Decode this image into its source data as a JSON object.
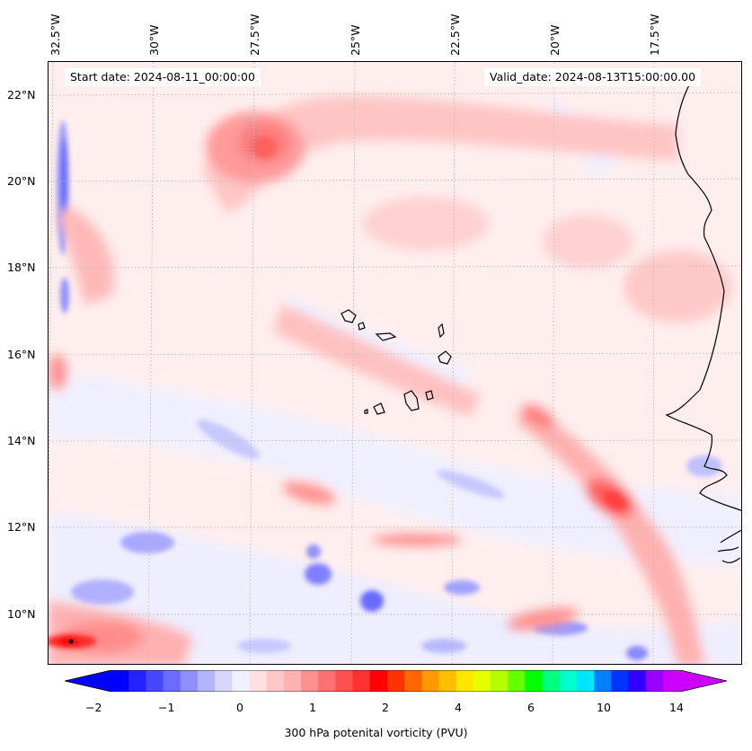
{
  "map": {
    "start_date": "Start date: 2024-08-11_00:00:00",
    "valid_date": "Valid_date: 2024-08-13T15:00:00.00",
    "lon_labels": [
      "32.5°W",
      "30°W",
      "27.5°W",
      "25°W",
      "22.5°W",
      "20°W",
      "17.5°W"
    ],
    "lat_labels": [
      "22°N",
      "20°N",
      "18°N",
      "16°N",
      "14°N",
      "12°N",
      "10°N"
    ],
    "field": "300 hPa potenital vorticity",
    "region": "Eastern tropical Atlantic, Cabo Verde islands and West African coast"
  },
  "colorbar": {
    "label": "300 hPa potenital vorticity (PVU)",
    "ticks": [
      "−2",
      "−1",
      "0",
      "1",
      "2",
      "4",
      "6",
      "10",
      "14"
    ],
    "colors": [
      "#0000ff",
      "#2323ff",
      "#4747ff",
      "#6b6bff",
      "#8f8fff",
      "#b3b3ff",
      "#d6d6ff",
      "#f0f0ff",
      "#ffe0e0",
      "#ffc8c8",
      "#ffb0b0",
      "#ff9090",
      "#ff7070",
      "#ff5050",
      "#ff3030",
      "#ff0000",
      "#ff3300",
      "#ff6600",
      "#ff9900",
      "#ffbf00",
      "#ffe600",
      "#e6ff00",
      "#b3ff00",
      "#66ff00",
      "#00ff00",
      "#00ff80",
      "#00ffcc",
      "#00e6ff",
      "#0080ff",
      "#0033ff",
      "#3300ff",
      "#9900ff",
      "#cc00ff"
    ],
    "extend_low_color": "#0000ff",
    "extend_high_color": "#cc00ff"
  }
}
